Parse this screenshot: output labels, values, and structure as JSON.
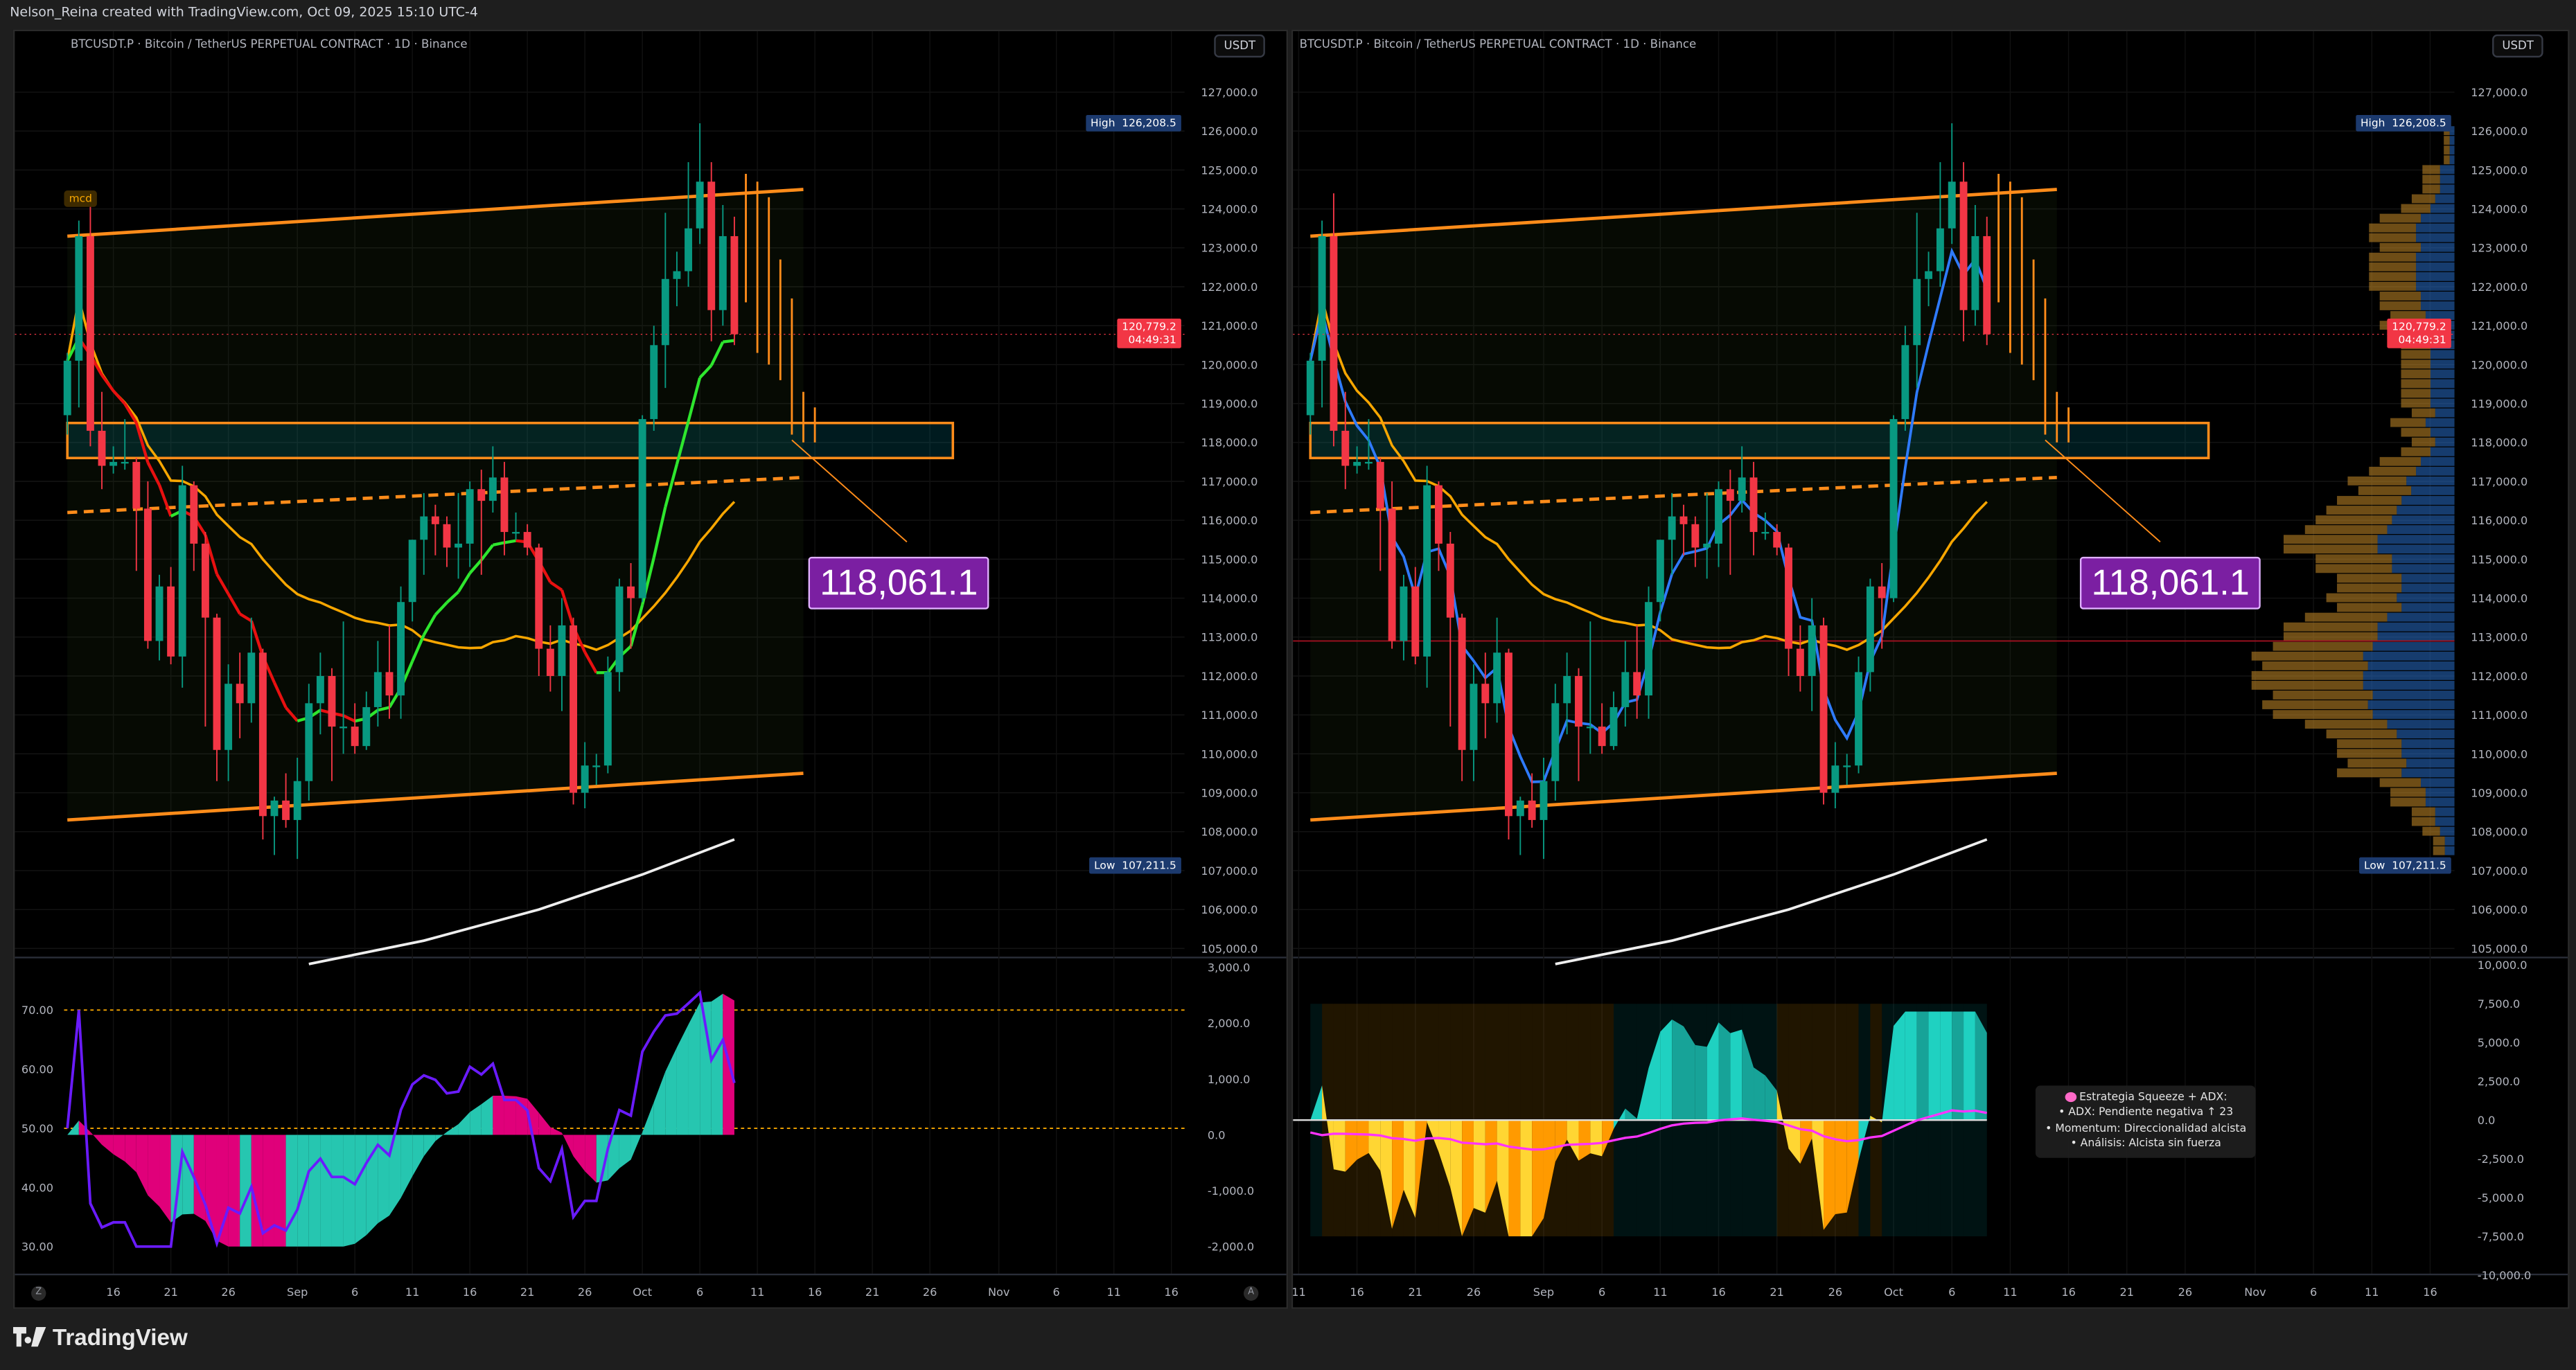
{
  "header": {
    "credit": "Nelson_Reina created with TradingView.com, Oct 09, 2025 15:10 UTC-4"
  },
  "panels": [
    {
      "symbol_title": "BTCUSDT.P · Bitcoin / TetherUS PERPETUAL CONTRACT · 1D · Binance",
      "currency_button": "USDT",
      "high_label": "High",
      "high_value": "126,208.5",
      "low_label": "Low",
      "low_value": "107,211.5",
      "last_price": "120,779.2",
      "countdown": "04:49:31",
      "annotation": "118,061.1",
      "indicator_tag": "mcd",
      "scale_buttons": [
        "Z",
        "A"
      ],
      "time_labels": [
        "16",
        "21",
        "26",
        "Sep",
        "6",
        "11",
        "16",
        "21",
        "26",
        "Oct",
        "6",
        "11",
        "16",
        "21",
        "26",
        "Nov",
        "6",
        "11",
        "16"
      ],
      "sub_left_axis": [
        "70.00",
        "60.00",
        "50.00",
        "40.00",
        "30.00"
      ],
      "sub_right_axis": [
        "3,000.0",
        "2,000.0",
        "1,000.0",
        "0.0",
        "-1,000.0",
        "-2,000.0"
      ]
    },
    {
      "symbol_title": "BTCUSDT.P · Bitcoin / TetherUS PERPETUAL CONTRACT · 1D · Binance",
      "currency_button": "USDT",
      "high_label": "High",
      "high_value": "126,208.5",
      "low_label": "Low",
      "low_value": "107,211.5",
      "last_price": "120,779.2",
      "countdown": "04:49:31",
      "annotation": "118,061.1",
      "time_labels": [
        "11",
        "16",
        "21",
        "26",
        "Sep",
        "6",
        "11",
        "16",
        "21",
        "26",
        "Oct",
        "6",
        "11",
        "16",
        "21",
        "26",
        "Nov",
        "6",
        "11",
        "16"
      ],
      "sub_right_axis": [
        "10,000.0",
        "7,500.0",
        "5,000.0",
        "2,500.0",
        "0.0",
        "-2,500.0",
        "-5,000.0",
        "-7,500.0",
        "-10,000.0"
      ],
      "tooltip": {
        "title": "Estrategia Squeeze + ADX:",
        "lines": [
          "• ADX: Pendiente negativa ↑ 23",
          "• Momentum: Direccionalidad alcista",
          "• Análisis: Alcista sin fuerza"
        ],
        "icon": "brain-icon"
      }
    }
  ],
  "footer": {
    "logo": "TradingView"
  },
  "colors": {
    "up": "#089981",
    "down": "#f23645",
    "channel": "#ff8c1a",
    "annotation": "#7b1fa2",
    "ma_mid": "#f7a600",
    "ma_fast_right": "#2f7bff",
    "rsi": "#6a1bff",
    "hist_up": "#26c6b0",
    "hist_down": "#e0007a",
    "sq_up": "#1fd1c1",
    "sq_down": "#ffd633",
    "adx": "#ff33ff"
  },
  "chart_data": {
    "type": "candlestick",
    "symbol": "BTCUSDT.P",
    "interval": "1D",
    "price_axis": {
      "min": 105000,
      "max": 127000,
      "step": 1000
    },
    "price_ticks": [
      "127,000.0",
      "126,000.0",
      "125,000.0",
      "124,000.0",
      "123,000.0",
      "122,000.0",
      "121,000.0",
      "120,000.0",
      "119,000.0",
      "118,000.0",
      "117,000.0",
      "116,000.0",
      "115,000.0",
      "114,000.0",
      "113,000.0",
      "112,000.0",
      "111,000.0",
      "110,000.0",
      "109,000.0",
      "108,000.0",
      "107,000.0",
      "106,000.0",
      "105,000.0"
    ],
    "columns": [
      "date",
      "open",
      "high",
      "low",
      "close"
    ],
    "candles": [
      [
        "2025-08-12",
        118700,
        120300,
        118200,
        120100
      ],
      [
        "2025-08-13",
        120100,
        123700,
        118900,
        123300
      ],
      [
        "2025-08-14",
        123300,
        124400,
        117900,
        118300
      ],
      [
        "2025-08-15",
        118300,
        119300,
        116800,
        117400
      ],
      [
        "2025-08-16",
        117400,
        117900,
        117200,
        117500
      ],
      [
        "2025-08-17",
        117500,
        118600,
        117300,
        117500
      ],
      [
        "2025-08-18",
        117500,
        117600,
        114700,
        116300
      ],
      [
        "2025-08-19",
        116300,
        117000,
        112700,
        112900
      ],
      [
        "2025-08-20",
        112900,
        114600,
        112400,
        114300
      ],
      [
        "2025-08-21",
        114300,
        114800,
        112300,
        112500
      ],
      [
        "2025-08-22",
        112500,
        117400,
        111700,
        116900
      ],
      [
        "2025-08-23",
        116900,
        117000,
        114700,
        115400
      ],
      [
        "2025-08-24",
        115400,
        115700,
        110700,
        113500
      ],
      [
        "2025-08-25",
        113500,
        113600,
        109300,
        110100
      ],
      [
        "2025-08-26",
        110100,
        112300,
        109300,
        111800
      ],
      [
        "2025-08-27",
        111800,
        112600,
        110400,
        111300
      ],
      [
        "2025-08-28",
        111300,
        113500,
        110800,
        112600
      ],
      [
        "2025-08-29",
        112600,
        112700,
        107800,
        108400
      ],
      [
        "2025-08-30",
        108400,
        108900,
        107400,
        108800
      ],
      [
        "2025-08-31",
        108800,
        109500,
        108100,
        108300
      ],
      [
        "2025-09-01",
        108300,
        109900,
        107300,
        109300
      ],
      [
        "2025-09-02",
        109300,
        111800,
        108800,
        111300
      ],
      [
        "2025-09-03",
        111300,
        112600,
        110500,
        112000
      ],
      [
        "2025-09-04",
        112000,
        112200,
        109300,
        110700
      ],
      [
        "2025-09-05",
        110700,
        113400,
        110000,
        110700
      ],
      [
        "2025-09-06",
        110700,
        111300,
        110000,
        110200
      ],
      [
        "2025-09-07",
        110200,
        111600,
        110100,
        111200
      ],
      [
        "2025-09-08",
        111200,
        112900,
        110700,
        112100
      ],
      [
        "2025-09-09",
        112100,
        113300,
        110900,
        111500
      ],
      [
        "2025-09-10",
        111500,
        114300,
        110900,
        113900
      ],
      [
        "2025-09-11",
        113900,
        115500,
        113400,
        115500
      ],
      [
        "2025-09-12",
        115500,
        116700,
        114600,
        116100
      ],
      [
        "2025-09-13",
        116100,
        116400,
        115100,
        115900
      ],
      [
        "2025-09-14",
        115900,
        116100,
        114800,
        115300
      ],
      [
        "2025-09-15",
        115300,
        116700,
        114500,
        115400
      ],
      [
        "2025-09-16",
        115400,
        117000,
        114800,
        116800
      ],
      [
        "2025-09-17",
        116800,
        117300,
        114600,
        116500
      ],
      [
        "2025-09-18",
        116500,
        117900,
        116200,
        117100
      ],
      [
        "2025-09-19",
        117100,
        117500,
        115100,
        115700
      ],
      [
        "2025-09-20",
        115700,
        116200,
        115500,
        115700
      ],
      [
        "2025-09-21",
        115700,
        115900,
        115100,
        115300
      ],
      [
        "2025-09-22",
        115300,
        115400,
        112000,
        112700
      ],
      [
        "2025-09-23",
        112700,
        113300,
        111600,
        112000
      ],
      [
        "2025-09-24",
        112000,
        114000,
        111100,
        113300
      ],
      [
        "2025-09-25",
        113300,
        113500,
        108700,
        109000
      ],
      [
        "2025-09-26",
        109000,
        110300,
        108600,
        109700
      ],
      [
        "2025-09-27",
        109700,
        110000,
        109200,
        109700
      ],
      [
        "2025-09-28",
        109700,
        112500,
        109500,
        112100
      ],
      [
        "2025-09-29",
        112100,
        114500,
        111600,
        114300
      ],
      [
        "2025-09-30",
        114300,
        114900,
        112700,
        114000
      ],
      [
        "2025-10-01",
        114000,
        118700,
        113900,
        118600
      ],
      [
        "2025-10-02",
        118600,
        121000,
        118300,
        120500
      ],
      [
        "2025-10-03",
        120500,
        123900,
        119400,
        122200
      ],
      [
        "2025-10-04",
        122200,
        122900,
        121500,
        122400
      ],
      [
        "2025-10-05",
        122400,
        125200,
        122000,
        123500
      ],
      [
        "2025-10-06",
        123500,
        126200,
        123100,
        124700
      ],
      [
        "2025-10-07",
        124700,
        125200,
        120600,
        121400
      ],
      [
        "2025-10-08",
        121400,
        124100,
        121000,
        123300
      ],
      [
        "2025-10-09",
        123300,
        123800,
        120500,
        120779.2
      ]
    ],
    "ma_long": [
      [
        "2025-09-02",
        104600
      ],
      [
        "2025-09-12",
        105200
      ],
      [
        "2025-09-22",
        106000
      ],
      [
        "2025-10-01",
        106900
      ],
      [
        "2025-10-09",
        107800
      ]
    ],
    "drawings": {
      "channel_upper": [
        [
          "2025-08-12",
          123300
        ],
        [
          "2025-10-15",
          124500
        ]
      ],
      "channel_lower": [
        [
          "2025-08-12",
          108300
        ],
        [
          "2025-10-15",
          109500
        ]
      ],
      "channel_mid": [
        [
          "2025-08-12",
          116200
        ],
        [
          "2025-10-15",
          117100
        ]
      ],
      "zone": {
        "from": "2025-08-12",
        "to": "2025-10-28",
        "low": 117600,
        "high": 118500
      },
      "target": {
        "date": "2025-10-14",
        "price": 118061.1
      },
      "projection": [
        [
          "2025-10-10",
          124900,
          121600
        ],
        [
          "2025-10-11",
          124700,
          120300
        ],
        [
          "2025-10-12",
          124300,
          120000
        ],
        [
          "2025-10-13",
          122700,
          119600
        ],
        [
          "2025-10-14",
          121700,
          118200
        ],
        [
          "2025-10-15",
          119300,
          118000
        ],
        [
          "2025-10-16",
          118900,
          118000
        ]
      ]
    },
    "sub_left": {
      "type": "area+line",
      "left_axis": [
        30,
        70
      ],
      "right_axis": [
        -2000,
        3000
      ],
      "levels": [
        70,
        50
      ]
    },
    "sub_right": {
      "type": "area+line",
      "axis": [
        -10000,
        10000
      ]
    }
  }
}
